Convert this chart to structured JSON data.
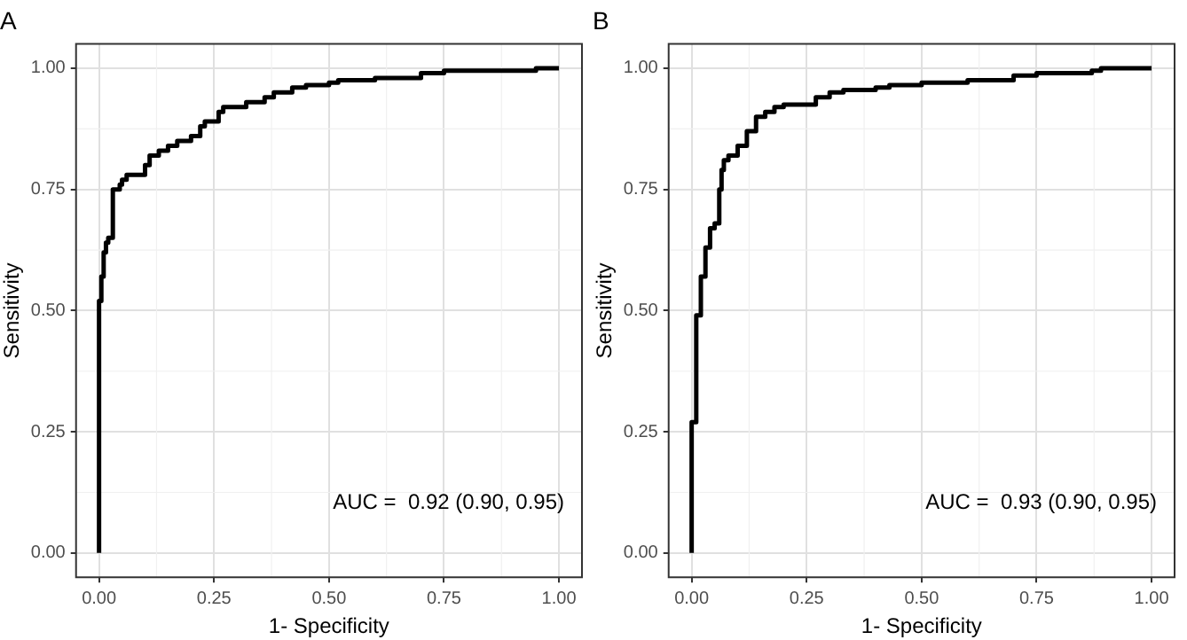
{
  "chart_data": [
    {
      "type": "step",
      "title": "A",
      "xlabel": "1- Specificity",
      "ylabel": "Sensitivity",
      "grid": true,
      "legend": false,
      "xlim": [
        -0.05,
        1.05
      ],
      "ylim": [
        -0.05,
        1.05
      ],
      "xticks": [
        {
          "value": 0,
          "label": "0.00"
        },
        {
          "value": 0.25,
          "label": "0.25"
        },
        {
          "value": 0.5,
          "label": "0.50"
        },
        {
          "value": 0.75,
          "label": "0.75"
        },
        {
          "value": 1,
          "label": "1.00"
        }
      ],
      "yticks": [
        {
          "value": 0,
          "label": "0.00"
        },
        {
          "value": 0.25,
          "label": "0.25"
        },
        {
          "value": 0.5,
          "label": "0.50"
        },
        {
          "value": 0.75,
          "label": "0.75"
        },
        {
          "value": 1,
          "label": "1.00"
        }
      ],
      "annotations": [
        "AUC =  0.92 (0.90, 0.95)"
      ],
      "series": [
        {
          "color": "#000000",
          "x": [
            0,
            0,
            0.005,
            0.01,
            0.015,
            0.02,
            0.03,
            0.045,
            0.05,
            0.06,
            0.1,
            0.11,
            0.13,
            0.15,
            0.17,
            0.2,
            0.22,
            0.23,
            0.26,
            0.27,
            0.32,
            0.36,
            0.38,
            0.42,
            0.45,
            0.5,
            0.52,
            0.6,
            0.7,
            0.75,
            0.85,
            0.95,
            1
          ],
          "values": [
            0,
            0.5,
            0.52,
            0.57,
            0.62,
            0.64,
            0.65,
            0.75,
            0.76,
            0.77,
            0.78,
            0.8,
            0.82,
            0.83,
            0.84,
            0.85,
            0.86,
            0.88,
            0.89,
            0.91,
            0.92,
            0.93,
            0.94,
            0.95,
            0.96,
            0.965,
            0.97,
            0.975,
            0.98,
            0.99,
            0.995,
            0.995,
            1
          ]
        }
      ]
    },
    {
      "type": "step",
      "title": "B",
      "xlabel": "1- Specificity",
      "ylabel": "Sensitivity",
      "grid": true,
      "legend": false,
      "xlim": [
        -0.05,
        1.05
      ],
      "ylim": [
        -0.05,
        1.05
      ],
      "xticks": [
        {
          "value": 0,
          "label": "0.00"
        },
        {
          "value": 0.25,
          "label": "0.25"
        },
        {
          "value": 0.5,
          "label": "0.50"
        },
        {
          "value": 0.75,
          "label": "0.75"
        },
        {
          "value": 1,
          "label": "1.00"
        }
      ],
      "yticks": [
        {
          "value": 0,
          "label": "0.00"
        },
        {
          "value": 0.25,
          "label": "0.25"
        },
        {
          "value": 0.5,
          "label": "0.50"
        },
        {
          "value": 0.75,
          "label": "0.75"
        },
        {
          "value": 1,
          "label": "1.00"
        }
      ],
      "annotations": [
        "AUC =  0.93 (0.90, 0.95)"
      ],
      "series": [
        {
          "color": "#000000",
          "x": [
            0,
            0,
            0.01,
            0.01,
            0.02,
            0.02,
            0.03,
            0.04,
            0.05,
            0.06,
            0.065,
            0.07,
            0.08,
            0.1,
            0.12,
            0.14,
            0.16,
            0.18,
            0.2,
            0.27,
            0.3,
            0.33,
            0.4,
            0.43,
            0.5,
            0.6,
            0.7,
            0.75,
            0.87,
            0.89,
            0.93,
            1
          ],
          "values": [
            0,
            0.27,
            0.27,
            0.49,
            0.49,
            0.54,
            0.57,
            0.63,
            0.67,
            0.68,
            0.75,
            0.79,
            0.81,
            0.82,
            0.84,
            0.87,
            0.9,
            0.91,
            0.92,
            0.925,
            0.94,
            0.95,
            0.955,
            0.96,
            0.965,
            0.97,
            0.975,
            0.985,
            0.99,
            0.995,
            1,
            1
          ]
        }
      ]
    }
  ]
}
